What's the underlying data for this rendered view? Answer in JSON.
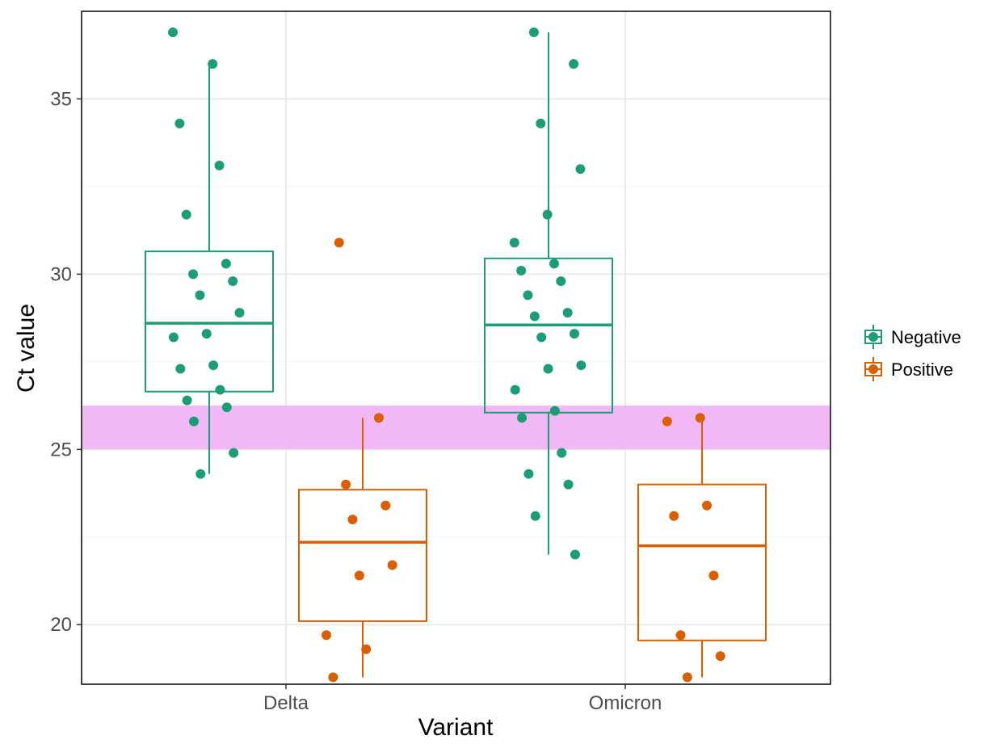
{
  "chart_data": {
    "type": "boxplot",
    "title": "",
    "xlabel": "Variant",
    "ylabel": "Ct value",
    "categories": [
      "Delta",
      "Omicron"
    ],
    "yticks": [
      20,
      25,
      30,
      35
    ],
    "ylim": [
      18.3,
      37.5
    ],
    "grid": true,
    "legend_position": "right",
    "highlight_band": {
      "y_from": 25.0,
      "y_to": 26.25,
      "color": "#f2b8f5"
    },
    "series": [
      {
        "name": "Negative",
        "color": "#1b9e77",
        "boxes": [
          {
            "category": "Delta",
            "q1": 26.65,
            "median": 28.6,
            "q3": 30.65,
            "whisker_low": 24.3,
            "whisker_high": 36.0
          },
          {
            "category": "Omicron",
            "q1": 26.05,
            "median": 28.55,
            "q3": 30.45,
            "whisker_low": 22.0,
            "whisker_high": 36.9
          }
        ],
        "points": [
          {
            "category": "Delta",
            "y": [
              36.9,
              36.0,
              34.3,
              33.1,
              31.7,
              30.3,
              30.0,
              29.8,
              29.4,
              28.9,
              28.3,
              28.2,
              27.4,
              27.3,
              26.7,
              26.4,
              26.2,
              25.8,
              24.9,
              24.3
            ]
          },
          {
            "category": "Omicron",
            "y": [
              36.9,
              36.0,
              34.3,
              33.0,
              31.7,
              30.9,
              30.3,
              30.1,
              29.8,
              29.4,
              28.9,
              28.8,
              28.3,
              28.2,
              27.4,
              27.3,
              26.7,
              26.1,
              25.9,
              24.9,
              24.3,
              24.0,
              23.1,
              22.0
            ]
          }
        ]
      },
      {
        "name": "Positive",
        "color": "#d95f02",
        "boxes": [
          {
            "category": "Delta",
            "q1": 20.1,
            "median": 22.35,
            "q3": 23.85,
            "whisker_low": 18.5,
            "whisker_high": 25.9
          },
          {
            "category": "Omicron",
            "q1": 19.55,
            "median": 22.25,
            "q3": 24.0,
            "whisker_low": 18.5,
            "whisker_high": 25.9
          }
        ],
        "points": [
          {
            "category": "Delta",
            "y": [
              30.9,
              25.9,
              24.0,
              23.4,
              23.0,
              21.7,
              21.4,
              19.7,
              19.3,
              18.5
            ]
          },
          {
            "category": "Omicron",
            "y": [
              25.9,
              25.8,
              23.4,
              23.1,
              21.4,
              19.7,
              19.1,
              18.5
            ]
          }
        ]
      }
    ]
  }
}
